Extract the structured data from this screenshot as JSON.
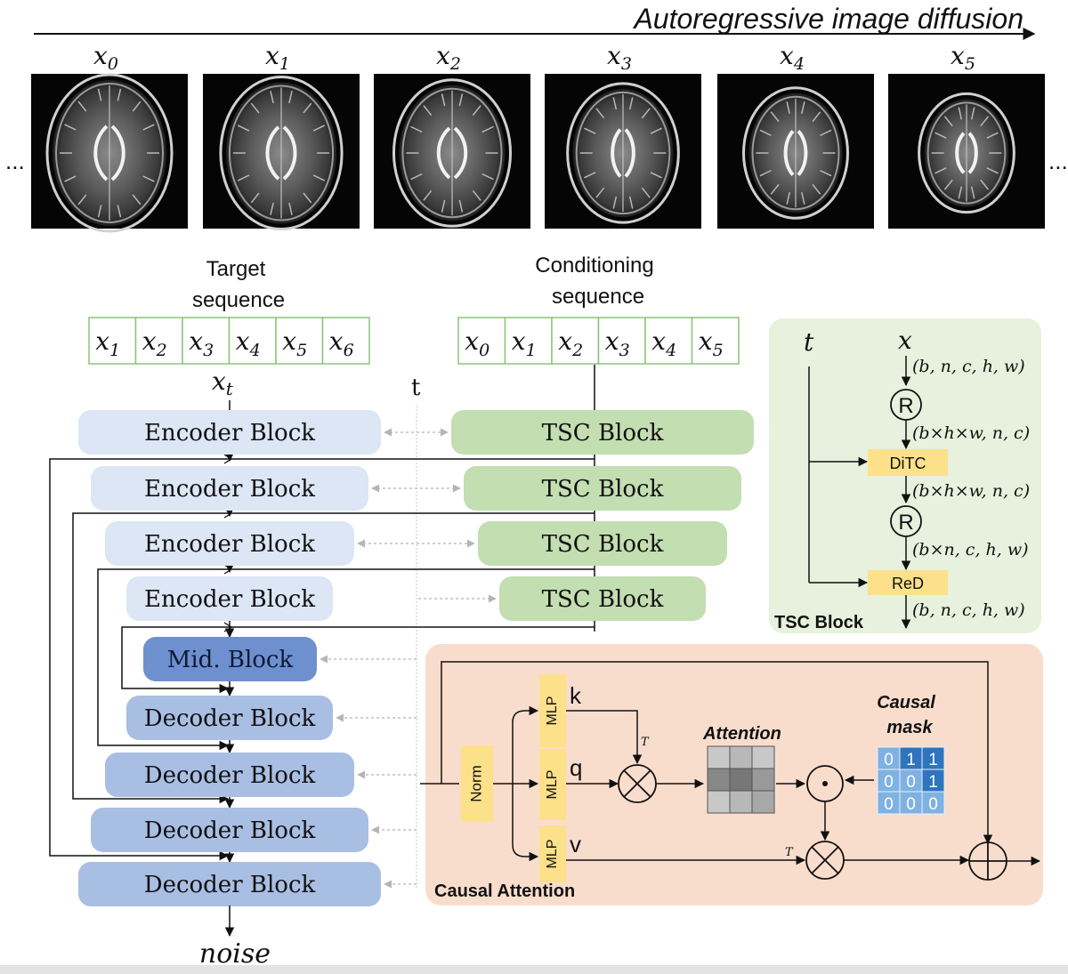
{
  "header": {
    "title": "Autoregressive  image diffusion",
    "ellipsis_left": "...",
    "ellipsis_right": "..."
  },
  "frames": [
    {
      "label": "x",
      "sub": "0"
    },
    {
      "label": "x",
      "sub": "1"
    },
    {
      "label": "x",
      "sub": "2"
    },
    {
      "label": "x",
      "sub": "3"
    },
    {
      "label": "x",
      "sub": "4"
    },
    {
      "label": "x",
      "sub": "5"
    }
  ],
  "target": {
    "title_line1": "Target",
    "title_line2": "sequence",
    "cells": [
      {
        "label": "x",
        "sub": "1"
      },
      {
        "label": "x",
        "sub": "2"
      },
      {
        "label": "x",
        "sub": "3"
      },
      {
        "label": "x",
        "sub": "4"
      },
      {
        "label": "x",
        "sub": "5"
      },
      {
        "label": "x",
        "sub": "6"
      }
    ],
    "xt_label": "x",
    "xt_sub": "t"
  },
  "conditioning": {
    "title_line1": "Conditioning",
    "title_line2": "sequence",
    "cells": [
      {
        "label": "x",
        "sub": "0"
      },
      {
        "label": "x",
        "sub": "1"
      },
      {
        "label": "x",
        "sub": "2"
      },
      {
        "label": "x",
        "sub": "3"
      },
      {
        "label": "x",
        "sub": "4"
      },
      {
        "label": "x",
        "sub": "5"
      }
    ]
  },
  "t_label": "t",
  "unet": {
    "encoder_label": "Encoder Block",
    "mid_label": "Mid. Block",
    "decoder_label": "Decoder Block",
    "tsc_label": "TSC Block",
    "noise_label": "noise"
  },
  "tsc_panel": {
    "title": "TSC Block",
    "t": "t",
    "x": "x",
    "r_symbol": "R",
    "ditc": "DiTC",
    "red": "ReD",
    "shapes": [
      "(b, n, c, h, w)",
      "(b×h×w, n, c)",
      "(b×h×w, n, c)",
      "(b×n, c, h, w)",
      "(b, n, c, h, w)"
    ]
  },
  "attention_panel": {
    "title": "Causal Attention",
    "norm": "Norm",
    "mlp": "MLP",
    "k": "k",
    "q": "q",
    "v": "v",
    "transpose": "T",
    "attention_label": "Attention",
    "mask_label_1": "Causal",
    "mask_label_2": "mask",
    "mask": [
      [
        "0",
        "1",
        "1"
      ],
      [
        "0",
        "0",
        "1"
      ],
      [
        "0",
        "0",
        "0"
      ]
    ]
  },
  "colors": {
    "encoder": "#dce6f5",
    "mid": "#6f90cf",
    "decoder": "#a9bee3",
    "tsc": "#c3deb1",
    "tsc_panel": "#e7f1dd",
    "attention_panel": "#f9ddcc",
    "yellow": "#fde08a",
    "mask_blue": "#2f74bd",
    "mask_light": "#7fb2e2"
  }
}
